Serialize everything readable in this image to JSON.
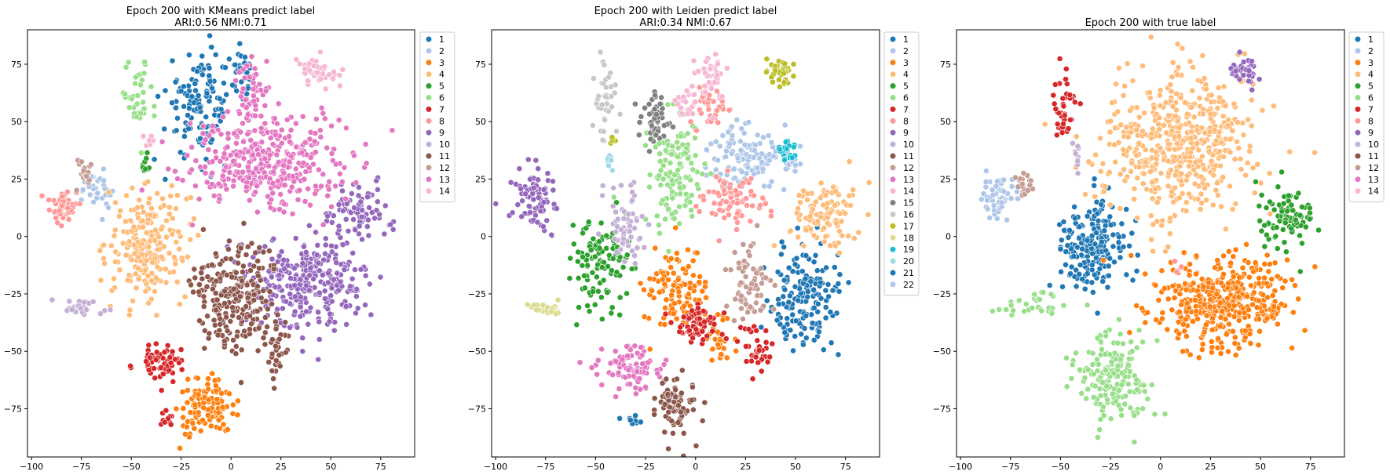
{
  "panels": [
    {
      "title_line1": "Epoch 200 with KMeans predict label",
      "title_line2": "ARI:0.56  NMI:0.71"
    },
    {
      "title_line1": "Epoch 200 with Leiden predict label",
      "title_line2": "ARI:0.34  NMI:0.67"
    },
    {
      "title_line1": "Epoch 200 with true label",
      "title_line2": ""
    }
  ],
  "palette": [
    "#1f77b4",
    "#aec7e8",
    "#ff7f0e",
    "#ffbb78",
    "#2ca02c",
    "#98df8a",
    "#d62728",
    "#ff9896",
    "#9467bd",
    "#c5b0d5",
    "#8c564b",
    "#c49c94",
    "#e377c2",
    "#f7b6d2",
    "#7f7f7f",
    "#c7c7c7",
    "#bcbd22",
    "#dbdb8d",
    "#17becf",
    "#9edae5",
    "#1f77b4",
    "#aec7e8"
  ],
  "chart_data": [
    {
      "type": "scatter",
      "title": "Epoch 200 with KMeans predict label\nARI:0.56  NMI:0.71",
      "xlim": [
        -102,
        92
      ],
      "ylim": [
        -96,
        90
      ],
      "xticks": [
        -100,
        -75,
        -50,
        -25,
        0,
        25,
        50,
        75
      ],
      "yticks": [
        -75,
        -50,
        -25,
        0,
        25,
        50,
        75
      ],
      "grid": false,
      "legend_placement": "outside-upper-right",
      "legend": [
        "1",
        "2",
        "3",
        "4",
        "5",
        "6",
        "7",
        "8",
        "9",
        "10",
        "11",
        "12",
        "13",
        "14"
      ],
      "clusters": [
        {
          "label": "1",
          "color_index": 0,
          "cx": -15,
          "cy": 58,
          "sx": 9,
          "sy": 12,
          "n": 130
        },
        {
          "label": "1",
          "color_index": 0,
          "cx": 6,
          "cy": 73,
          "sx": 3,
          "sy": 4,
          "n": 25
        },
        {
          "label": "2",
          "color_index": 1,
          "cx": -68,
          "cy": 20,
          "sx": 4,
          "sy": 4,
          "n": 30
        },
        {
          "label": "3",
          "color_index": 2,
          "cx": -12,
          "cy": -75,
          "sx": 7,
          "sy": 6,
          "n": 120
        },
        {
          "label": "4",
          "color_index": 3,
          "cx": -42,
          "cy": -3,
          "sx": 10,
          "sy": 12,
          "n": 220
        },
        {
          "label": "5",
          "color_index": 4,
          "cx": -43,
          "cy": 32,
          "sx": 1,
          "sy": 3,
          "n": 12
        },
        {
          "label": "6",
          "color_index": 5,
          "cx": -47,
          "cy": 60,
          "sx": 4,
          "sy": 8,
          "n": 40
        },
        {
          "label": "7",
          "color_index": 6,
          "cx": -35,
          "cy": -55,
          "sx": 6,
          "sy": 4,
          "n": 70
        },
        {
          "label": "7",
          "color_index": 6,
          "cx": -33,
          "cy": -79,
          "sx": 2,
          "sy": 2,
          "n": 10
        },
        {
          "label": "8",
          "color_index": 7,
          "cx": -83,
          "cy": 14,
          "sx": 4,
          "sy": 4,
          "n": 45
        },
        {
          "label": "9",
          "color_index": 8,
          "cx": 40,
          "cy": -20,
          "sx": 14,
          "sy": 10,
          "n": 300
        },
        {
          "label": "9",
          "color_index": 8,
          "cx": 65,
          "cy": 10,
          "sx": 8,
          "sy": 6,
          "n": 80
        },
        {
          "label": "10",
          "color_index": 9,
          "cx": -76,
          "cy": -31,
          "sx": 6,
          "sy": 2,
          "n": 25
        },
        {
          "label": "11",
          "color_index": 10,
          "cx": 2,
          "cy": -25,
          "sx": 11,
          "sy": 12,
          "n": 240
        },
        {
          "label": "11",
          "color_index": 10,
          "cx": 22,
          "cy": -50,
          "sx": 3,
          "sy": 6,
          "n": 30
        },
        {
          "label": "12",
          "color_index": 11,
          "cx": -73,
          "cy": 28,
          "sx": 3,
          "sy": 3,
          "n": 20
        },
        {
          "label": "13",
          "color_index": 12,
          "cx": 18,
          "cy": 32,
          "sx": 20,
          "sy": 10,
          "n": 380
        },
        {
          "label": "13",
          "color_index": 12,
          "cx": 10,
          "cy": 62,
          "sx": 4,
          "sy": 8,
          "n": 50
        },
        {
          "label": "14",
          "color_index": 13,
          "cx": 42,
          "cy": 72,
          "sx": 5,
          "sy": 3,
          "n": 40
        },
        {
          "label": "14",
          "color_index": 13,
          "cx": -42,
          "cy": 42,
          "sx": 2,
          "sy": 2,
          "n": 8
        }
      ]
    },
    {
      "type": "scatter",
      "title": "Epoch 200 with Leiden predict label\nARI:0.34  NMI:0.67",
      "xlim": [
        -102,
        92
      ],
      "ylim": [
        -96,
        90
      ],
      "xticks": [
        -100,
        -75,
        -50,
        -25,
        0,
        25,
        50,
        75
      ],
      "yticks": [
        -75,
        -50,
        -25,
        0,
        25,
        50,
        75
      ],
      "grid": false,
      "legend_placement": "outside-upper-right",
      "legend": [
        "1",
        "2",
        "3",
        "4",
        "5",
        "6",
        "7",
        "8",
        "9",
        "10",
        "11",
        "12",
        "13",
        "14",
        "15",
        "16",
        "17",
        "18",
        "19",
        "20",
        "21",
        "22"
      ],
      "clusters": [
        {
          "label": "1",
          "color_index": 0,
          "cx": 55,
          "cy": -28,
          "sx": 9,
          "sy": 12,
          "n": 160
        },
        {
          "label": "2",
          "color_index": 1,
          "cx": 28,
          "cy": 35,
          "sx": 10,
          "sy": 7,
          "n": 140
        },
        {
          "label": "3",
          "color_index": 2,
          "cx": -10,
          "cy": -25,
          "sx": 8,
          "sy": 9,
          "n": 110
        },
        {
          "label": "3",
          "color_index": 2,
          "cx": 12,
          "cy": -45,
          "sx": 4,
          "sy": 6,
          "n": 30
        },
        {
          "label": "4",
          "color_index": 3,
          "cx": 65,
          "cy": 10,
          "sx": 9,
          "sy": 7,
          "n": 110
        },
        {
          "label": "5",
          "color_index": 4,
          "cx": -48,
          "cy": -12,
          "sx": 7,
          "sy": 9,
          "n": 110
        },
        {
          "label": "6",
          "color_index": 5,
          "cx": -10,
          "cy": 28,
          "sx": 7,
          "sy": 12,
          "n": 130
        },
        {
          "label": "7",
          "color_index": 6,
          "cx": 0,
          "cy": -38,
          "sx": 6,
          "sy": 4,
          "n": 60
        },
        {
          "label": "7",
          "color_index": 6,
          "cx": 30,
          "cy": -50,
          "sx": 4,
          "sy": 5,
          "n": 35
        },
        {
          "label": "8",
          "color_index": 7,
          "cx": 18,
          "cy": 15,
          "sx": 8,
          "sy": 6,
          "n": 80
        },
        {
          "label": "8",
          "color_index": 7,
          "cx": 8,
          "cy": 55,
          "sx": 5,
          "sy": 5,
          "n": 40
        },
        {
          "label": "9",
          "color_index": 8,
          "cx": -80,
          "cy": 16,
          "sx": 6,
          "sy": 7,
          "n": 80
        },
        {
          "label": "10",
          "color_index": 9,
          "cx": -35,
          "cy": 5,
          "sx": 5,
          "sy": 8,
          "n": 60
        },
        {
          "label": "11",
          "color_index": 10,
          "cx": -10,
          "cy": -72,
          "sx": 5,
          "sy": 7,
          "n": 90
        },
        {
          "label": "12",
          "color_index": 11,
          "cx": 27,
          "cy": -20,
          "sx": 5,
          "sy": 10,
          "n": 70
        },
        {
          "label": "13",
          "color_index": 12,
          "cx": -33,
          "cy": -57,
          "sx": 8,
          "sy": 5,
          "n": 90
        },
        {
          "label": "14",
          "color_index": 13,
          "cx": 8,
          "cy": 70,
          "sx": 4,
          "sy": 6,
          "n": 40
        },
        {
          "label": "14",
          "color_index": 13,
          "cx": -5,
          "cy": 58,
          "sx": 3,
          "sy": 4,
          "n": 25
        },
        {
          "label": "15",
          "color_index": 14,
          "cx": -20,
          "cy": 52,
          "sx": 4,
          "sy": 6,
          "n": 50
        },
        {
          "label": "16",
          "color_index": 15,
          "cx": -46,
          "cy": 60,
          "sx": 3,
          "sy": 9,
          "n": 40
        },
        {
          "label": "17",
          "color_index": 16,
          "cx": 42,
          "cy": 72,
          "sx": 4,
          "sy": 3,
          "n": 40
        },
        {
          "label": "17",
          "color_index": 16,
          "cx": -42,
          "cy": 41,
          "sx": 1,
          "sy": 1,
          "n": 5
        },
        {
          "label": "18",
          "color_index": 17,
          "cx": -75,
          "cy": -31,
          "sx": 6,
          "sy": 2,
          "n": 25
        },
        {
          "label": "19",
          "color_index": 18,
          "cx": 47,
          "cy": 37,
          "sx": 3,
          "sy": 2,
          "n": 20
        },
        {
          "label": "20",
          "color_index": 19,
          "cx": -43,
          "cy": 32,
          "sx": 1,
          "sy": 2,
          "n": 8
        },
        {
          "label": "21",
          "color_index": 20,
          "cx": -31,
          "cy": -80,
          "sx": 2,
          "sy": 1,
          "n": 10
        }
      ]
    },
    {
      "type": "scatter",
      "title": "Epoch 200 with true label",
      "xlim": [
        -102,
        92
      ],
      "ylim": [
        -96,
        90
      ],
      "xticks": [
        -100,
        -75,
        -50,
        -25,
        0,
        25,
        50,
        75
      ],
      "yticks": [
        -75,
        -50,
        -25,
        0,
        25,
        50,
        75
      ],
      "grid": false,
      "legend_placement": "outside-upper-right",
      "legend": [
        "1",
        "2",
        "3",
        "4",
        "5",
        "6",
        "7",
        "8",
        "9",
        "10",
        "11",
        "12",
        "13",
        "14"
      ],
      "clusters": [
        {
          "label": "1",
          "color_index": 0,
          "cx": -35,
          "cy": -5,
          "sx": 8,
          "sy": 10,
          "n": 200
        },
        {
          "label": "2",
          "color_index": 1,
          "cx": -82,
          "cy": 18,
          "sx": 5,
          "sy": 5,
          "n": 50
        },
        {
          "label": "3",
          "color_index": 2,
          "cx": 30,
          "cy": -28,
          "sx": 18,
          "sy": 10,
          "n": 420
        },
        {
          "label": "4",
          "color_index": 3,
          "cx": 10,
          "cy": 40,
          "sx": 20,
          "sy": 16,
          "n": 520
        },
        {
          "label": "5",
          "color_index": 4,
          "cx": 62,
          "cy": 8,
          "sx": 8,
          "sy": 7,
          "n": 90
        },
        {
          "label": "6",
          "color_index": 5,
          "cx": -25,
          "cy": -62,
          "sx": 10,
          "sy": 10,
          "n": 170
        },
        {
          "label": "6",
          "color_index": 5,
          "cx": -65,
          "cy": -30,
          "sx": 7,
          "sy": 3,
          "n": 30
        },
        {
          "label": "7",
          "color_index": 6,
          "cx": -48,
          "cy": 57,
          "sx": 3,
          "sy": 8,
          "n": 40
        },
        {
          "label": "8",
          "color_index": 7,
          "cx": 8,
          "cy": -14,
          "sx": 2,
          "sy": 2,
          "n": 5
        },
        {
          "label": "9",
          "color_index": 8,
          "cx": 42,
          "cy": 72,
          "sx": 4,
          "sy": 3,
          "n": 40
        },
        {
          "label": "10",
          "color_index": 9,
          "cx": -42,
          "cy": 33,
          "sx": 1,
          "sy": 4,
          "n": 10
        },
        {
          "label": "12",
          "color_index": 11,
          "cx": -68,
          "cy": 24,
          "sx": 2,
          "sy": 4,
          "n": 20
        }
      ]
    }
  ]
}
